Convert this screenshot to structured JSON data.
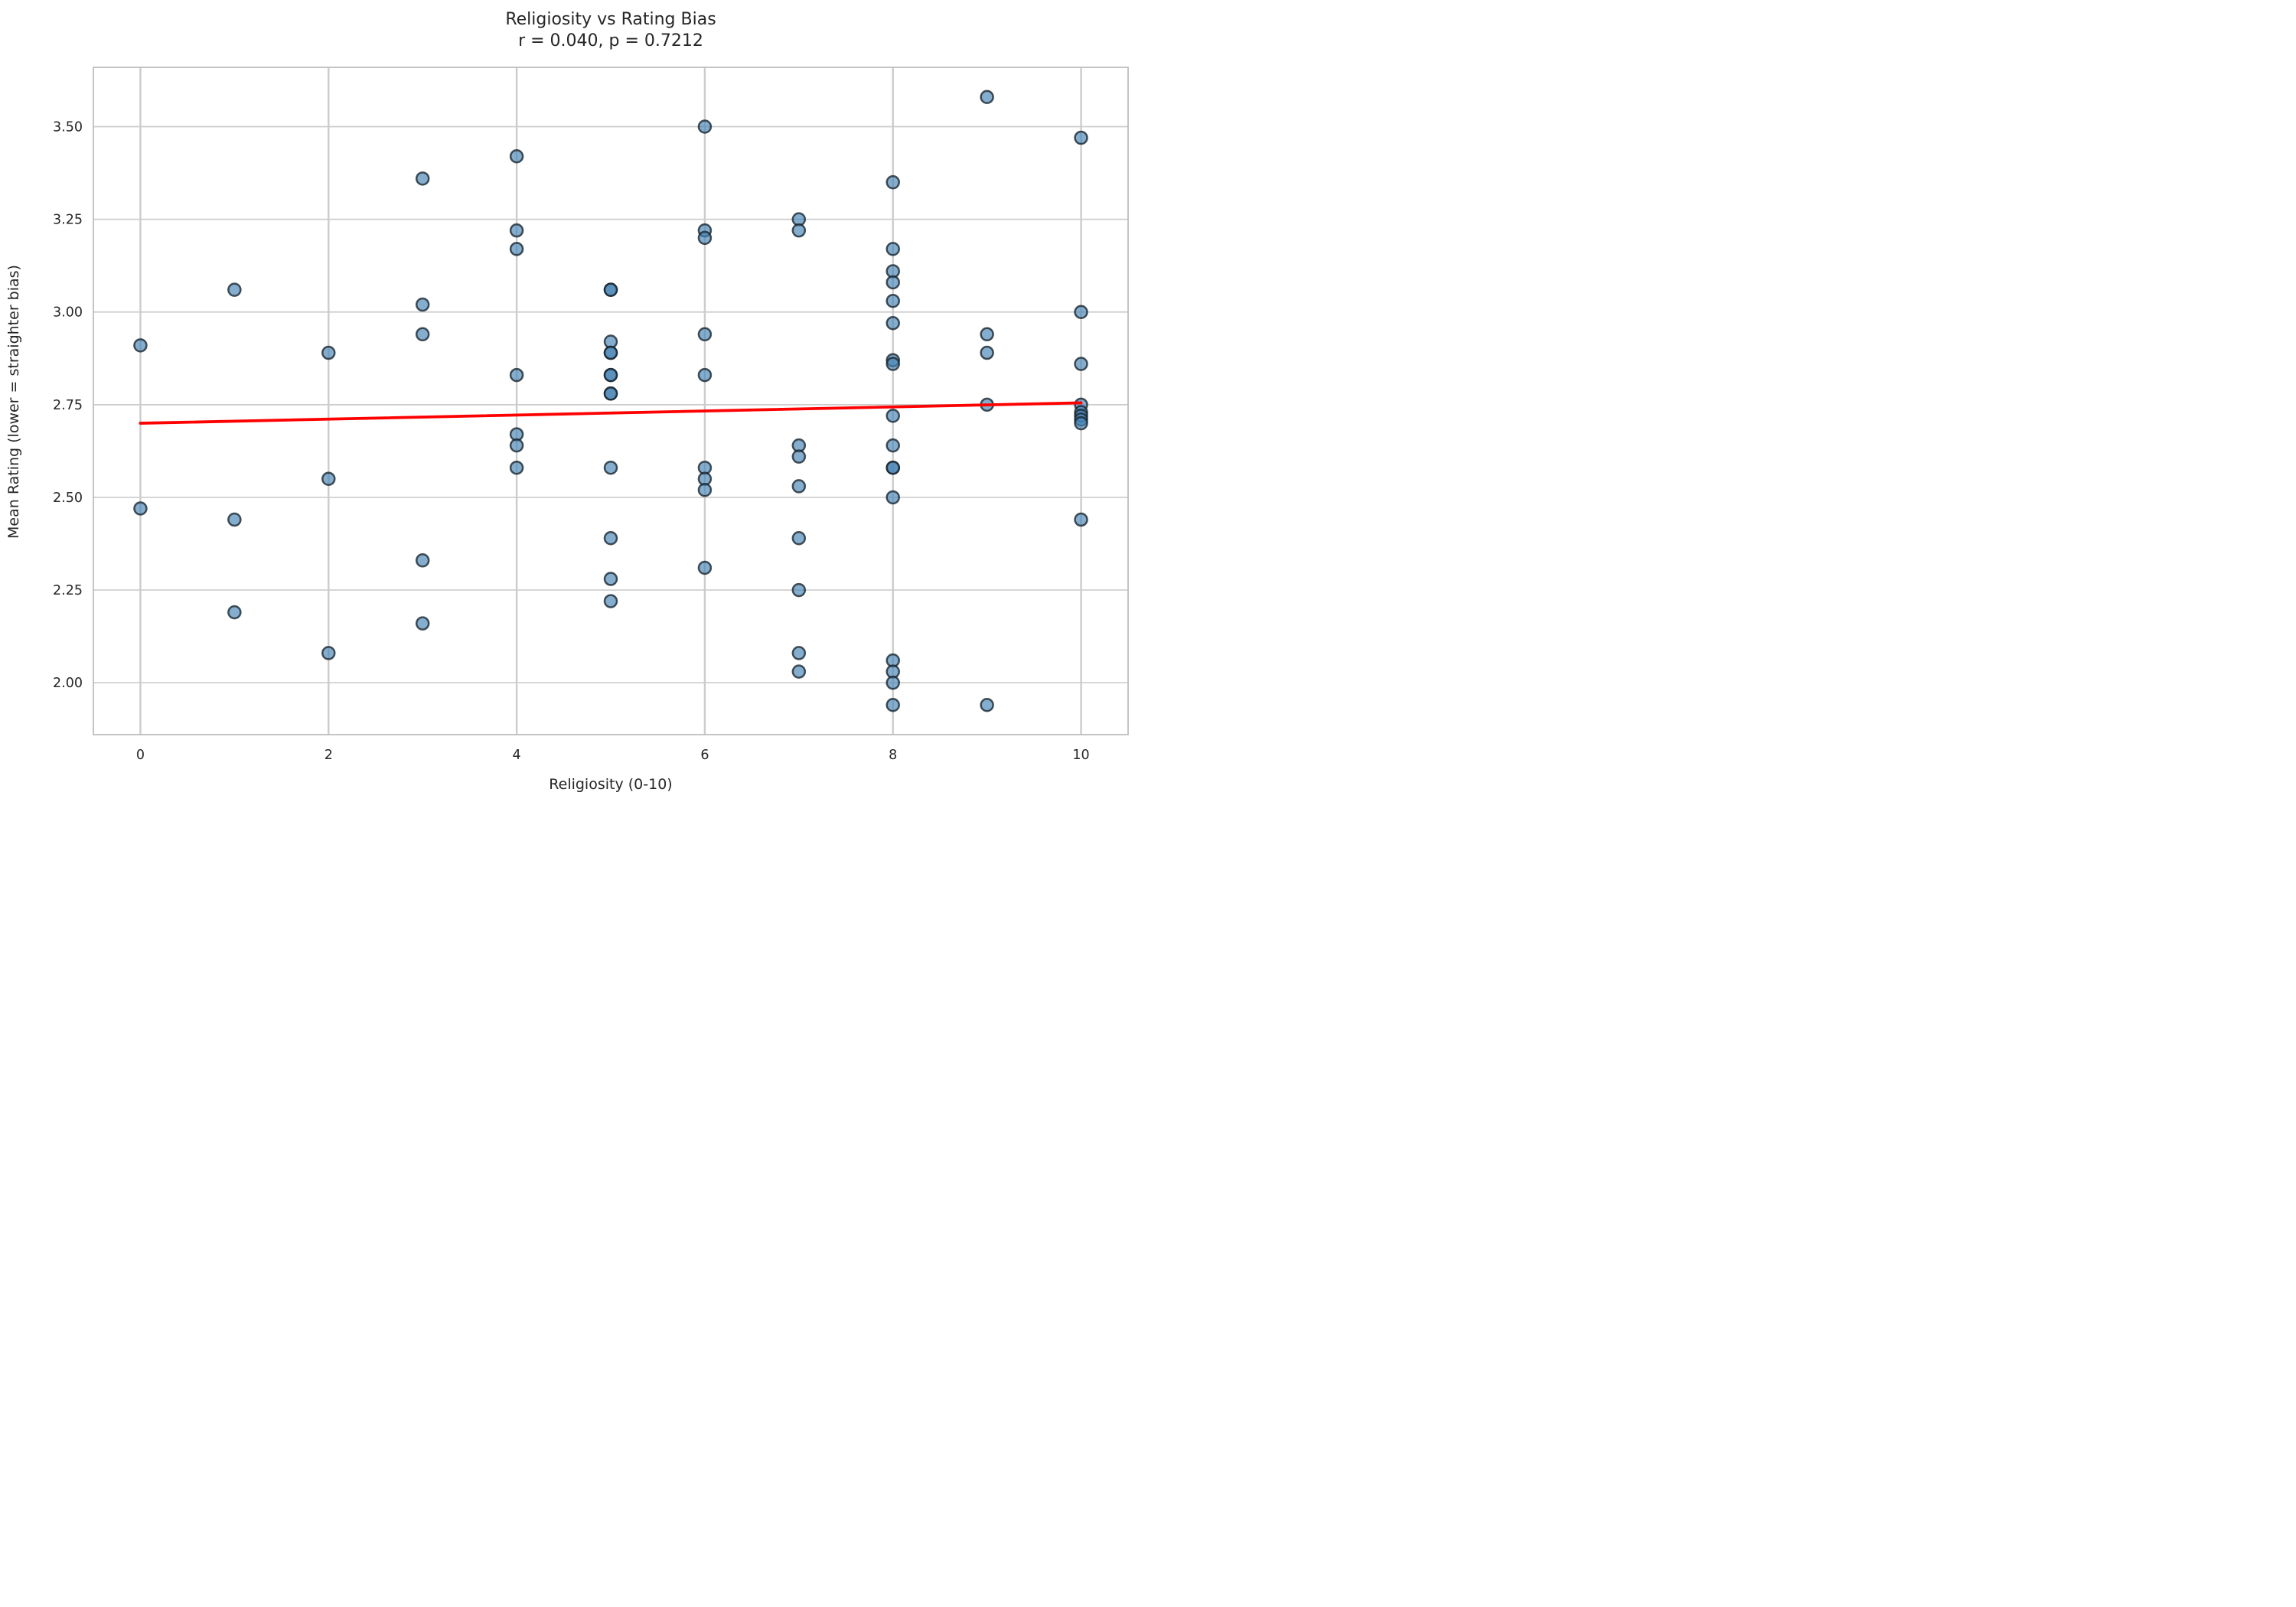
{
  "title": {
    "line1": "Religiosity vs Rating Bias",
    "line2": "r = 0.040, p = 0.7212"
  },
  "axes": {
    "x_label": "Religiosity (0-10)",
    "y_label": "Mean Rating (lower = straighter bias)"
  },
  "chart_data": {
    "type": "scatter",
    "title": "Religiosity vs Rating Bias",
    "subtitle": "r = 0.040, p = 0.7212",
    "stats": {
      "r": 0.04,
      "p": 0.7212
    },
    "xlabel": "Religiosity (0-10)",
    "ylabel": "Mean Rating (lower = straighter bias)",
    "xlim": [
      -0.5,
      10.5
    ],
    "ylim": [
      1.86,
      3.66
    ],
    "x_ticks": [
      0,
      2,
      4,
      6,
      8,
      10
    ],
    "y_ticks": [
      2.0,
      2.25,
      2.5,
      2.75,
      3.0,
      3.25,
      3.5
    ],
    "grid": true,
    "legend": "none",
    "points": [
      [
        0,
        2.91
      ],
      [
        0,
        2.47
      ],
      [
        1,
        3.06
      ],
      [
        1,
        2.44
      ],
      [
        1,
        2.19
      ],
      [
        2,
        2.89
      ],
      [
        2,
        2.55
      ],
      [
        2,
        2.08
      ],
      [
        3,
        3.36
      ],
      [
        3,
        3.02
      ],
      [
        3,
        2.94
      ],
      [
        3,
        2.33
      ],
      [
        3,
        2.16
      ],
      [
        4,
        3.42
      ],
      [
        4,
        3.22
      ],
      [
        4,
        3.17
      ],
      [
        4,
        2.83
      ],
      [
        4,
        2.67
      ],
      [
        4,
        2.64
      ],
      [
        4,
        2.58
      ],
      [
        5,
        3.06
      ],
      [
        5,
        3.06
      ],
      [
        5,
        2.92
      ],
      [
        5,
        2.89
      ],
      [
        5,
        2.89
      ],
      [
        5,
        2.83
      ],
      [
        5,
        2.83
      ],
      [
        5,
        2.78
      ],
      [
        5,
        2.78
      ],
      [
        5,
        2.58
      ],
      [
        5,
        2.39
      ],
      [
        5,
        2.28
      ],
      [
        5,
        2.22
      ],
      [
        6,
        3.5
      ],
      [
        6,
        3.22
      ],
      [
        6,
        3.2
      ],
      [
        6,
        2.94
      ],
      [
        6,
        2.83
      ],
      [
        6,
        2.58
      ],
      [
        6,
        2.55
      ],
      [
        6,
        2.52
      ],
      [
        6,
        2.31
      ],
      [
        7,
        3.25
      ],
      [
        7,
        3.22
      ],
      [
        7,
        2.64
      ],
      [
        7,
        2.61
      ],
      [
        7,
        2.53
      ],
      [
        7,
        2.39
      ],
      [
        7,
        2.25
      ],
      [
        7,
        2.08
      ],
      [
        7,
        2.03
      ],
      [
        8,
        3.35
      ],
      [
        8,
        3.17
      ],
      [
        8,
        3.11
      ],
      [
        8,
        3.08
      ],
      [
        8,
        3.03
      ],
      [
        8,
        2.97
      ],
      [
        8,
        2.87
      ],
      [
        8,
        2.86
      ],
      [
        8,
        2.72
      ],
      [
        8,
        2.64
      ],
      [
        8,
        2.58
      ],
      [
        8,
        2.58
      ],
      [
        8,
        2.5
      ],
      [
        8,
        2.06
      ],
      [
        8,
        2.03
      ],
      [
        8,
        2.0
      ],
      [
        8,
        1.94
      ],
      [
        9,
        3.58
      ],
      [
        9,
        2.94
      ],
      [
        9,
        2.89
      ],
      [
        9,
        2.75
      ],
      [
        9,
        1.94
      ],
      [
        10,
        3.47
      ],
      [
        10,
        3.0
      ],
      [
        10,
        2.86
      ],
      [
        10,
        2.75
      ],
      [
        10,
        2.73
      ],
      [
        10,
        2.72
      ],
      [
        10,
        2.71
      ],
      [
        10,
        2.7
      ],
      [
        10,
        2.44
      ]
    ],
    "trend_line": {
      "x1": 0,
      "y1": 2.7,
      "x2": 10,
      "y2": 2.755
    },
    "colors": {
      "marker_fill": "#4682b4",
      "marker_edge": "#16222c",
      "trend_line": "#ff0000",
      "grid": "#cccccc",
      "spine": "#bdbdbd",
      "text": "#262626",
      "background": "#ffffff"
    }
  }
}
